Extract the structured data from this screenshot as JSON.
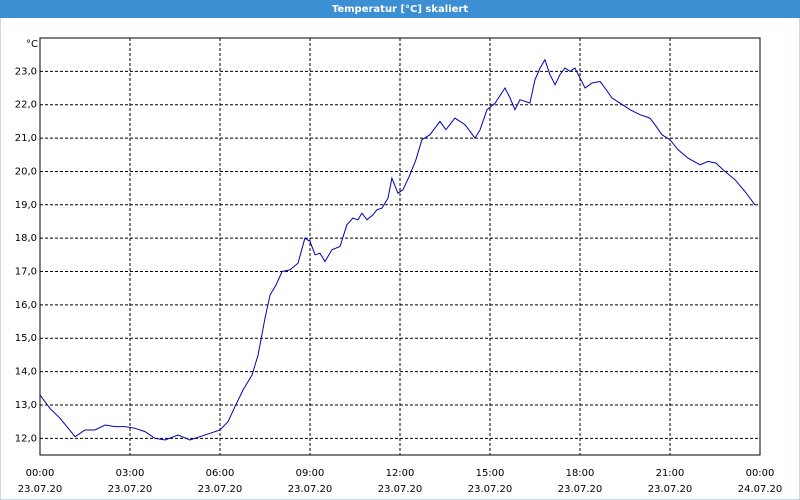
{
  "chart_data": {
    "type": "line",
    "title": "Temperatur [°C] skaliert",
    "y_unit": "°C",
    "color": "#0000b0",
    "grid": true,
    "x": [
      0,
      0.33,
      0.67,
      1.17,
      1.5,
      1.83,
      2.17,
      2.5,
      2.83,
      3.17,
      3.5,
      3.83,
      4.17,
      4.6,
      5.0,
      5.33,
      5.67,
      6.0,
      6.27,
      6.5,
      6.77,
      7.07,
      7.27,
      7.5,
      7.67,
      7.87,
      8.07,
      8.33,
      8.6,
      8.83,
      9.0,
      9.17,
      9.33,
      9.5,
      9.73,
      10.0,
      10.23,
      10.43,
      10.6,
      10.73,
      10.9,
      11.1,
      11.23,
      11.4,
      11.6,
      11.73,
      11.93,
      12.1,
      12.33,
      12.53,
      12.73,
      13.0,
      13.33,
      13.53,
      13.83,
      14.17,
      14.5,
      14.67,
      14.9,
      15.17,
      15.5,
      15.67,
      15.83,
      16.0,
      16.33,
      16.5,
      16.67,
      16.83,
      17.0,
      17.17,
      17.33,
      17.5,
      17.67,
      17.83,
      18.0,
      18.17,
      18.4,
      18.67,
      18.83,
      19.07,
      19.33,
      19.67,
      20.0,
      20.33,
      20.5,
      20.73,
      21.0,
      21.27,
      21.6,
      22.0,
      22.27,
      22.53,
      22.83,
      23.17,
      23.5,
      23.83
    ],
    "values": [
      13.3,
      12.9,
      12.6,
      12.05,
      12.25,
      12.25,
      12.4,
      12.35,
      12.35,
      12.3,
      12.2,
      12.0,
      11.95,
      12.1,
      11.95,
      12.05,
      12.15,
      12.25,
      12.5,
      12.95,
      13.45,
      13.9,
      14.5,
      15.6,
      16.3,
      16.6,
      17.0,
      17.05,
      17.25,
      18.0,
      17.9,
      17.5,
      17.55,
      17.3,
      17.65,
      17.75,
      18.4,
      18.6,
      18.55,
      18.75,
      18.55,
      18.7,
      18.85,
      18.9,
      19.2,
      19.8,
      19.35,
      19.45,
      19.9,
      20.35,
      20.95,
      21.1,
      21.5,
      21.25,
      21.6,
      21.4,
      21.0,
      21.25,
      21.85,
      22.05,
      22.5,
      22.2,
      21.85,
      22.15,
      22.05,
      22.75,
      23.1,
      23.35,
      22.9,
      22.6,
      22.9,
      23.1,
      23.0,
      23.1,
      22.8,
      22.5,
      22.65,
      22.7,
      22.5,
      22.2,
      22.05,
      21.85,
      21.7,
      21.6,
      21.4,
      21.1,
      20.95,
      20.65,
      20.4,
      20.2,
      20.3,
      20.25,
      20.0,
      19.75,
      19.4,
      19.0
    ],
    "ylim": [
      11.5,
      24.0
    ],
    "yticks": [
      {
        "value": 12,
        "label": "12,0"
      },
      {
        "value": 13,
        "label": "13,0"
      },
      {
        "value": 14,
        "label": "14,0"
      },
      {
        "value": 15,
        "label": "15,0"
      },
      {
        "value": 16,
        "label": "16,0"
      },
      {
        "value": 17,
        "label": "17,0"
      },
      {
        "value": 18,
        "label": "18,0"
      },
      {
        "value": 19,
        "label": "19,0"
      },
      {
        "value": 20,
        "label": "20,0"
      },
      {
        "value": 21,
        "label": "21,0"
      },
      {
        "value": 22,
        "label": "22,0"
      },
      {
        "value": 23,
        "label": "23,0"
      }
    ],
    "xlim": [
      0,
      24
    ],
    "xticks": [
      {
        "value": 0,
        "label": "00:00"
      },
      {
        "value": 3,
        "label": "03:00"
      },
      {
        "value": 6,
        "label": "06:00"
      },
      {
        "value": 9,
        "label": "09:00"
      },
      {
        "value": 12,
        "label": "12:00"
      },
      {
        "value": 15,
        "label": "15:00"
      },
      {
        "value": 18,
        "label": "18:00"
      },
      {
        "value": 21,
        "label": "21:00"
      },
      {
        "value": 24,
        "label": "00:00"
      }
    ],
    "xtick_dates": [
      "23.07.20",
      "23.07.20",
      "23.07.20",
      "23.07.20",
      "23.07.20",
      "23.07.20",
      "23.07.20",
      "23.07.20",
      "24.07.20"
    ]
  }
}
